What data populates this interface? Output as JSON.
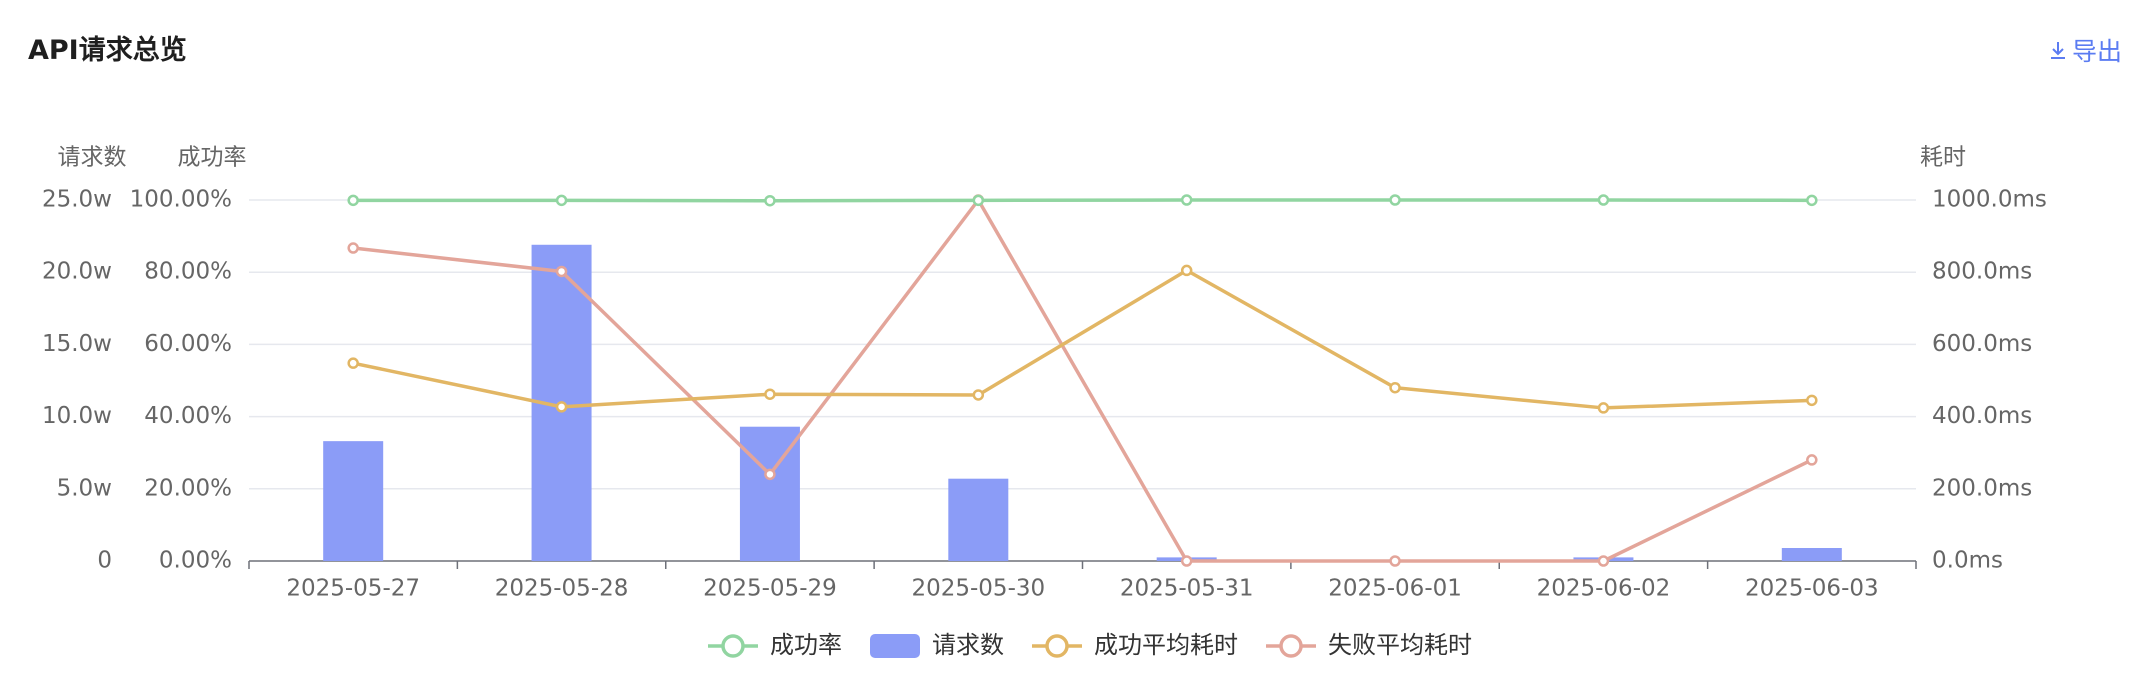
{
  "header": {
    "title": "API请求总览",
    "export_label": "导出"
  },
  "chart_data": {
    "type": "bar",
    "categories": [
      "2025-05-27",
      "2025-05-28",
      "2025-05-29",
      "2025-05-30",
      "2025-05-31",
      "2025-06-01",
      "2025-06-02",
      "2025-06-03"
    ],
    "y_axes": {
      "requests": {
        "name": "请求数",
        "min": 0,
        "max": 250000,
        "ticks": [
          "0",
          "5.0w",
          "10.0w",
          "15.0w",
          "20.0w",
          "25.0w"
        ]
      },
      "success_rate": {
        "name": "成功率",
        "min": 0,
        "max": 100,
        "ticks": [
          "0.00%",
          "20.00%",
          "40.00%",
          "60.00%",
          "80.00%",
          "100.00%"
        ]
      },
      "duration": {
        "name": "耗时",
        "min": 0,
        "max": 1000,
        "ticks": [
          "0.0ms",
          "200.0ms",
          "400.0ms",
          "600.0ms",
          "800.0ms",
          "1000.0ms"
        ]
      }
    },
    "series": [
      {
        "name": "成功率",
        "type": "line",
        "axis": "success_rate",
        "color": "#91d5a1",
        "values": [
          99.9,
          99.9,
          99.8,
          99.9,
          100.0,
          100.0,
          100.0,
          99.9
        ]
      },
      {
        "name": "请求数",
        "type": "bar",
        "axis": "requests",
        "color": "#8b9cf7",
        "values": [
          83000,
          219000,
          93000,
          57000,
          2500,
          0,
          2500,
          9000
        ]
      },
      {
        "name": "成功平均耗时",
        "type": "line",
        "axis": "duration",
        "color": "#e2b664",
        "values": [
          548,
          427,
          462,
          460,
          805,
          480,
          424,
          445
        ]
      },
      {
        "name": "失败平均耗时",
        "type": "line",
        "axis": "duration",
        "color": "#e3a59a",
        "values": [
          867,
          802,
          240,
          1000,
          0,
          0,
          0,
          280
        ]
      }
    ],
    "grid": true,
    "legend_position": "bottom-center"
  }
}
